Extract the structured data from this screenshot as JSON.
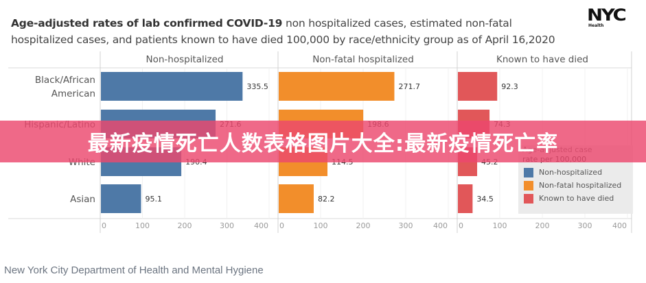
{
  "title": {
    "bold": "Age-adjusted rates of lab confirmed COVID-19",
    "rest": " non hospitalized cases, estimated non-fatal hospitalized cases, and patients known to have died 100,000 by race/ethnicity group as of April 16,2020"
  },
  "logo": {
    "text": "NYC",
    "sub": "Health"
  },
  "footer": "New York City Department of Health and Mental Hygiene",
  "banner": "最新疫情死亡人数表格图片大全:最新疫情死亡率",
  "legend": {
    "title_line1": "Age-adjusted case",
    "title_line2": "rate per 100,000",
    "items": [
      {
        "label": "Non-hospitalized",
        "color": "#4e79a7"
      },
      {
        "label": "Non-fatal hospitalized",
        "color": "#f28e2b"
      },
      {
        "label": "Known to have died",
        "color": "#e15759"
      }
    ]
  },
  "chart_data": {
    "type": "bar",
    "orientation": "horizontal",
    "title": "Age-adjusted rates of lab confirmed COVID-19 non hospitalized cases, estimated non-fatal hospitalized cases, and patients known to have died 100,000 by race/ethnicity group as of April 16,2020",
    "categories": [
      "Black/African American",
      "Hispanic/Latino",
      "White",
      "Asian"
    ],
    "category_lines": [
      [
        "Black/African",
        "American"
      ],
      [
        "Hispanic/Latino"
      ],
      [
        "White"
      ],
      [
        "Asian"
      ]
    ],
    "series": [
      {
        "name": "Non-hospitalized",
        "color": "#4e79a7",
        "values": [
          335.5,
          271.6,
          190.4,
          95.1
        ]
      },
      {
        "name": "Non-fatal hospitalized",
        "color": "#f28e2b",
        "values": [
          271.7,
          198.6,
          114.5,
          82.2
        ]
      },
      {
        "name": "Known to have died",
        "color": "#e15759",
        "values": [
          92.3,
          74.3,
          45.2,
          34.5
        ]
      }
    ],
    "xlim": [
      0,
      400
    ],
    "xticks": [
      0,
      100,
      200,
      300,
      400
    ],
    "xlabel": "",
    "ylabel": "",
    "grid": true,
    "legend_position": "bottom-right"
  }
}
